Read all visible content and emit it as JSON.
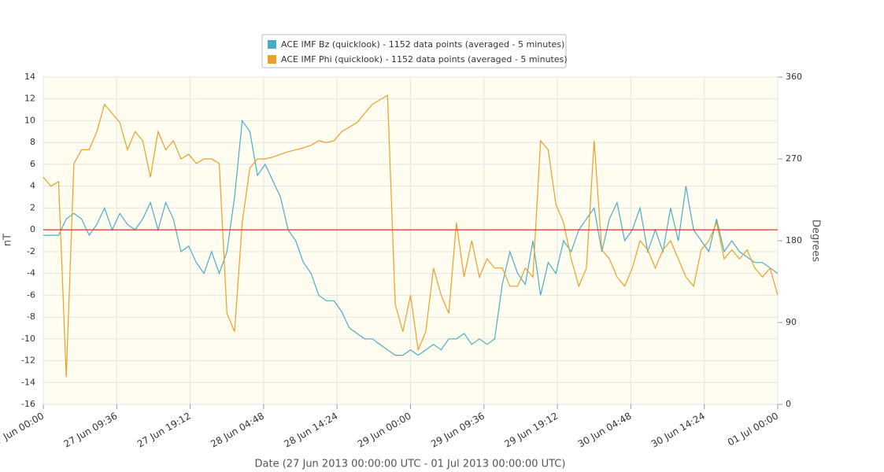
{
  "chart_data": {
    "type": "line",
    "xlabel": "Date (27 Jun 2013 00:00:00 UTC - 01 Jul 2013 00:00:00 UTC)",
    "ylabel": "nT",
    "y2label": "Degrees",
    "x": [
      "2013-06-27T00:00",
      "2013-06-27T01:00",
      "2013-06-27T02:00",
      "2013-06-27T03:00",
      "2013-06-27T04:00",
      "2013-06-27T05:00",
      "2013-06-27T06:00",
      "2013-06-27T07:00",
      "2013-06-27T08:00",
      "2013-06-27T09:00",
      "2013-06-27T10:00",
      "2013-06-27T11:00",
      "2013-06-27T12:00",
      "2013-06-27T13:00",
      "2013-06-27T14:00",
      "2013-06-27T15:00",
      "2013-06-27T16:00",
      "2013-06-27T17:00",
      "2013-06-27T18:00",
      "2013-06-27T19:00",
      "2013-06-27T20:00",
      "2013-06-27T21:00",
      "2013-06-27T22:00",
      "2013-06-27T23:00",
      "2013-06-28T00:00",
      "2013-06-28T01:00",
      "2013-06-28T02:00",
      "2013-06-28T03:00",
      "2013-06-28T04:00",
      "2013-06-28T05:00",
      "2013-06-28T06:00",
      "2013-06-28T07:00",
      "2013-06-28T08:00",
      "2013-06-28T09:00",
      "2013-06-28T10:00",
      "2013-06-28T11:00",
      "2013-06-28T12:00",
      "2013-06-28T13:00",
      "2013-06-28T14:00",
      "2013-06-28T15:00",
      "2013-06-28T16:00",
      "2013-06-28T17:00",
      "2013-06-28T18:00",
      "2013-06-28T19:00",
      "2013-06-28T20:00",
      "2013-06-28T21:00",
      "2013-06-28T22:00",
      "2013-06-28T23:00",
      "2013-06-29T00:00",
      "2013-06-29T01:00",
      "2013-06-29T02:00",
      "2013-06-29T03:00",
      "2013-06-29T04:00",
      "2013-06-29T05:00",
      "2013-06-29T06:00",
      "2013-06-29T07:00",
      "2013-06-29T08:00",
      "2013-06-29T09:00",
      "2013-06-29T10:00",
      "2013-06-29T11:00",
      "2013-06-29T12:00",
      "2013-06-29T13:00",
      "2013-06-29T14:00",
      "2013-06-29T15:00",
      "2013-06-29T16:00",
      "2013-06-29T17:00",
      "2013-06-29T18:00",
      "2013-06-29T19:00",
      "2013-06-29T20:00",
      "2013-06-29T21:00",
      "2013-06-29T22:00",
      "2013-06-29T23:00",
      "2013-06-30T00:00",
      "2013-06-30T01:00",
      "2013-06-30T02:00",
      "2013-06-30T03:00",
      "2013-06-30T04:00",
      "2013-06-30T05:00",
      "2013-06-30T06:00",
      "2013-06-30T07:00",
      "2013-06-30T08:00",
      "2013-06-30T09:00",
      "2013-06-30T10:00",
      "2013-06-30T11:00",
      "2013-06-30T12:00",
      "2013-06-30T13:00",
      "2013-06-30T14:00",
      "2013-06-30T15:00",
      "2013-06-30T16:00",
      "2013-06-30T17:00",
      "2013-06-30T18:00",
      "2013-06-30T19:00",
      "2013-06-30T20:00",
      "2013-06-30T21:00",
      "2013-06-30T22:00",
      "2013-06-30T23:00",
      "2013-07-01T00:00"
    ],
    "series": [
      {
        "name": "ACE IMF Bz (quicklook) - 1152 data points (averaged - 5 minutes)",
        "color": "#4bacc6",
        "values": [
          -0.5,
          -0.5,
          -0.5,
          1,
          1.5,
          1,
          -0.5,
          0.5,
          2,
          0,
          1.5,
          0.5,
          0,
          1,
          2.5,
          0,
          2.5,
          1,
          -2,
          -1.5,
          -3,
          -4,
          -2,
          -4,
          -2,
          3,
          10,
          9,
          5,
          6,
          4.5,
          3,
          0,
          -1,
          -3,
          -4,
          -6,
          -6.5,
          -6.5,
          -7.5,
          -9,
          -9.5,
          -10,
          -10,
          -10.5,
          -11,
          -11.5,
          -11.5,
          -11,
          -11.5,
          -11,
          -10.5,
          -11,
          -10,
          -10,
          -9.5,
          -10.5,
          -10,
          -10.5,
          -10,
          -5,
          -2,
          -4,
          -5,
          -1,
          -6,
          -3,
          -4,
          -1,
          -2,
          0,
          1,
          2,
          -2,
          1,
          2.5,
          -1,
          0,
          2,
          -2,
          0,
          -2,
          2,
          -1,
          4,
          0,
          -1,
          -2,
          1,
          -2,
          -1,
          -2,
          -2.5,
          -3,
          -3,
          -3.5,
          -4
        ]
      },
      {
        "name": "ACE IMF Phi (quicklook) - 1152 data points (averaged - 5 minutes)",
        "color": "#e8a12a",
        "axis": "y2",
        "values": [
          250,
          240,
          245,
          30,
          265,
          280,
          280,
          300,
          330,
          320,
          310,
          280,
          300,
          290,
          250,
          300,
          280,
          290,
          270,
          275,
          265,
          270,
          270,
          265,
          100,
          80,
          200,
          260,
          270,
          270,
          272,
          275,
          278,
          280,
          282,
          285,
          290,
          288,
          290,
          300,
          305,
          310,
          320,
          330,
          335,
          340,
          110,
          80,
          120,
          60,
          80,
          150,
          120,
          100,
          200,
          140,
          180,
          140,
          160,
          150,
          150,
          130,
          130,
          150,
          140,
          290,
          280,
          220,
          200,
          160,
          130,
          150,
          290,
          170,
          160,
          140,
          130,
          150,
          180,
          170,
          150,
          170,
          180,
          160,
          140,
          130,
          170,
          180,
          200,
          160,
          170,
          160,
          170,
          150,
          140,
          150,
          120
        ]
      }
    ],
    "xlim": [
      "2013-06-27T00:00",
      "2013-07-01T00:00"
    ],
    "xticks": [
      {
        "value": "2013-06-27T00:00",
        "label": "27 Jun 00:00"
      },
      {
        "value": "2013-06-27T09:36",
        "label": "27 Jun 09:36"
      },
      {
        "value": "2013-06-27T19:12",
        "label": "27 Jun 19:12"
      },
      {
        "value": "2013-06-28T04:48",
        "label": "28 Jun 04:48"
      },
      {
        "value": "2013-06-28T14:24",
        "label": "28 Jun 14:24"
      },
      {
        "value": "2013-06-29T00:00",
        "label": "29 Jun 00:00"
      },
      {
        "value": "2013-06-29T09:36",
        "label": "29 Jun 09:36"
      },
      {
        "value": "2013-06-29T19:12",
        "label": "29 Jun 19:12"
      },
      {
        "value": "2013-06-30T04:48",
        "label": "30 Jun 04:48"
      },
      {
        "value": "2013-06-30T14:24",
        "label": "30 Jun 14:24"
      },
      {
        "value": "2013-07-01T00:00",
        "label": "01 Jul 00:00"
      }
    ],
    "ylim": [
      -16,
      14
    ],
    "yticks": [
      -16,
      -14,
      -12,
      -10,
      -8,
      -6,
      -4,
      -2,
      0,
      2,
      4,
      6,
      8,
      10,
      12,
      14
    ],
    "y2lim": [
      0,
      360
    ],
    "y2ticks": [
      0,
      90,
      180,
      270,
      360
    ],
    "zero_line": {
      "value": 0,
      "color": "#d9372b"
    },
    "grid": true
  }
}
